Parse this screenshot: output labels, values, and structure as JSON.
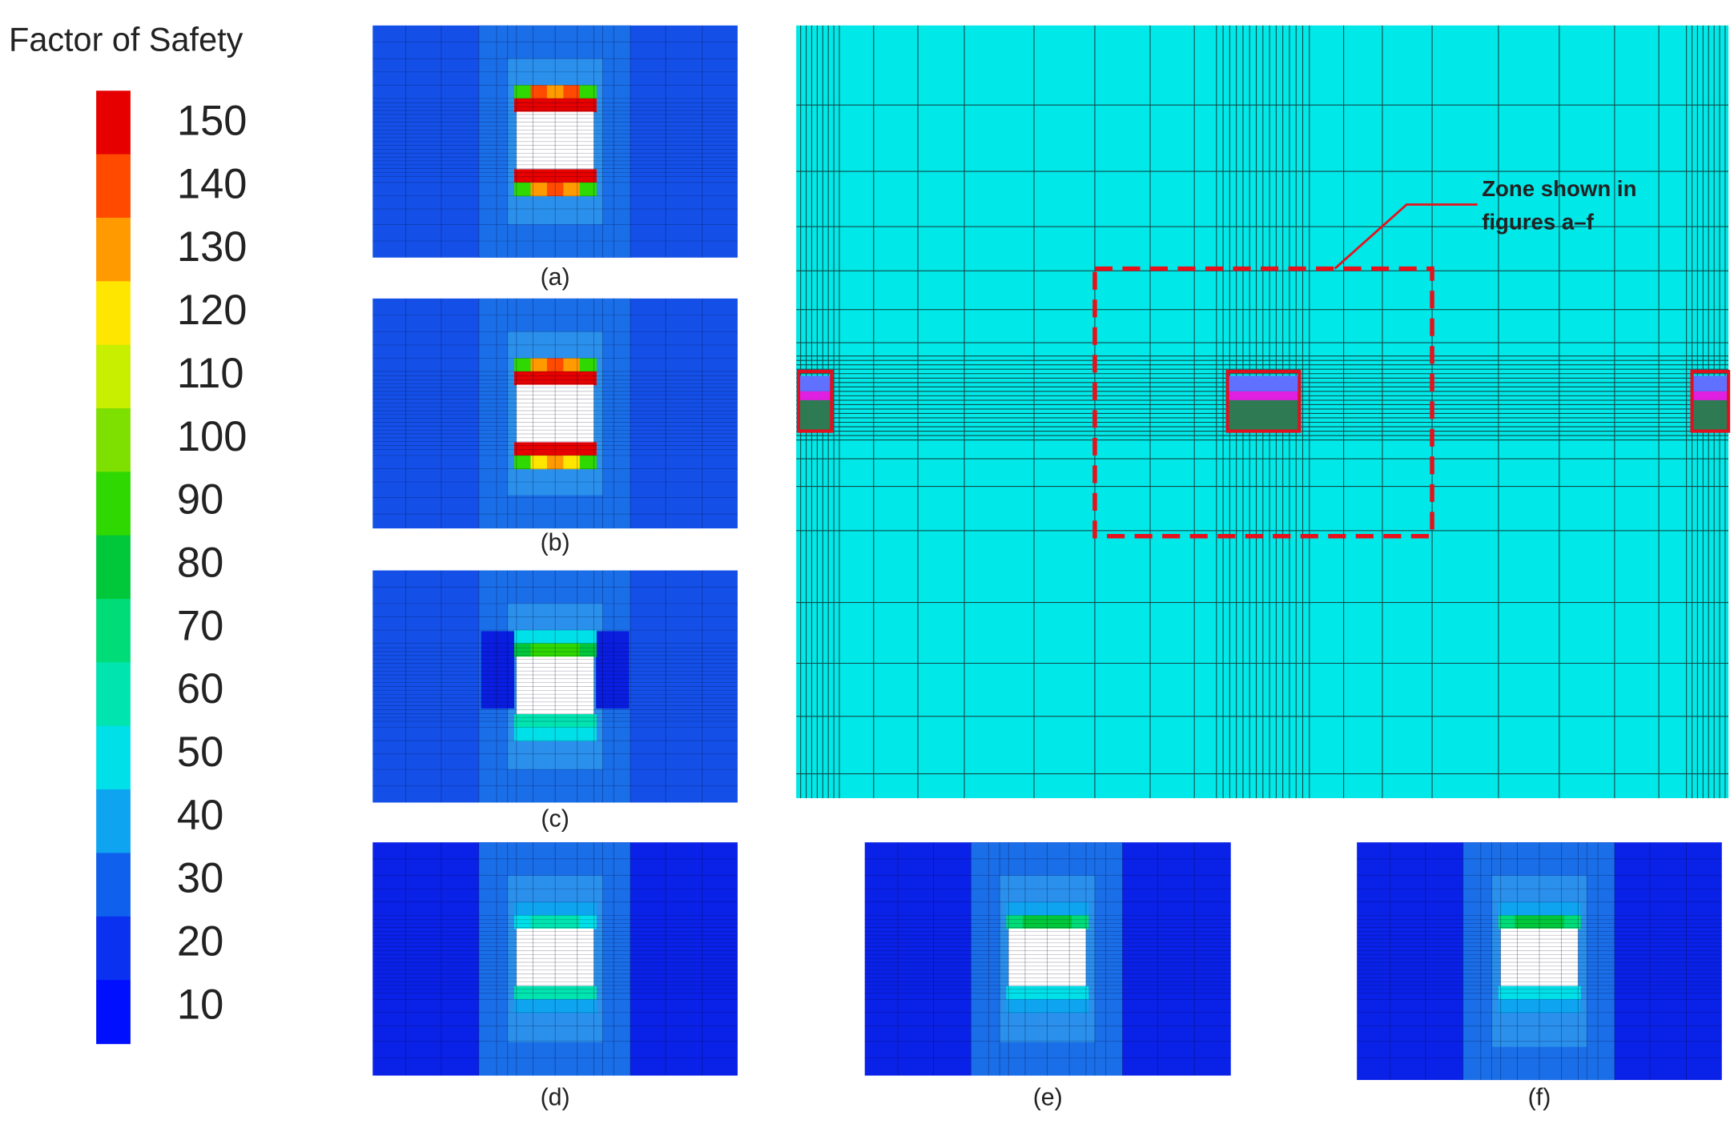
{
  "colorbar": {
    "title": "Factor of Safety",
    "ticks": [
      150,
      140,
      130,
      120,
      110,
      100,
      90,
      80,
      70,
      60,
      50,
      40,
      30,
      20,
      10
    ],
    "colors": [
      "#e60000",
      "#ff4a00",
      "#ff9a00",
      "#ffe600",
      "#c8ee00",
      "#7ee000",
      "#2ed800",
      "#00c83a",
      "#00dc78",
      "#00e4b0",
      "#00e0e8",
      "#0ea4f0",
      "#1060ee",
      "#0a30f0",
      "#0010ff"
    ]
  },
  "panels": [
    {
      "caption": "(a)"
    },
    {
      "caption": "(b)"
    },
    {
      "caption": "(c)"
    },
    {
      "caption": "(d)"
    },
    {
      "caption": "(e)"
    },
    {
      "caption": "(f)"
    }
  ],
  "annotation": {
    "lines": [
      "Zone shown in",
      "figures a–f"
    ]
  }
}
